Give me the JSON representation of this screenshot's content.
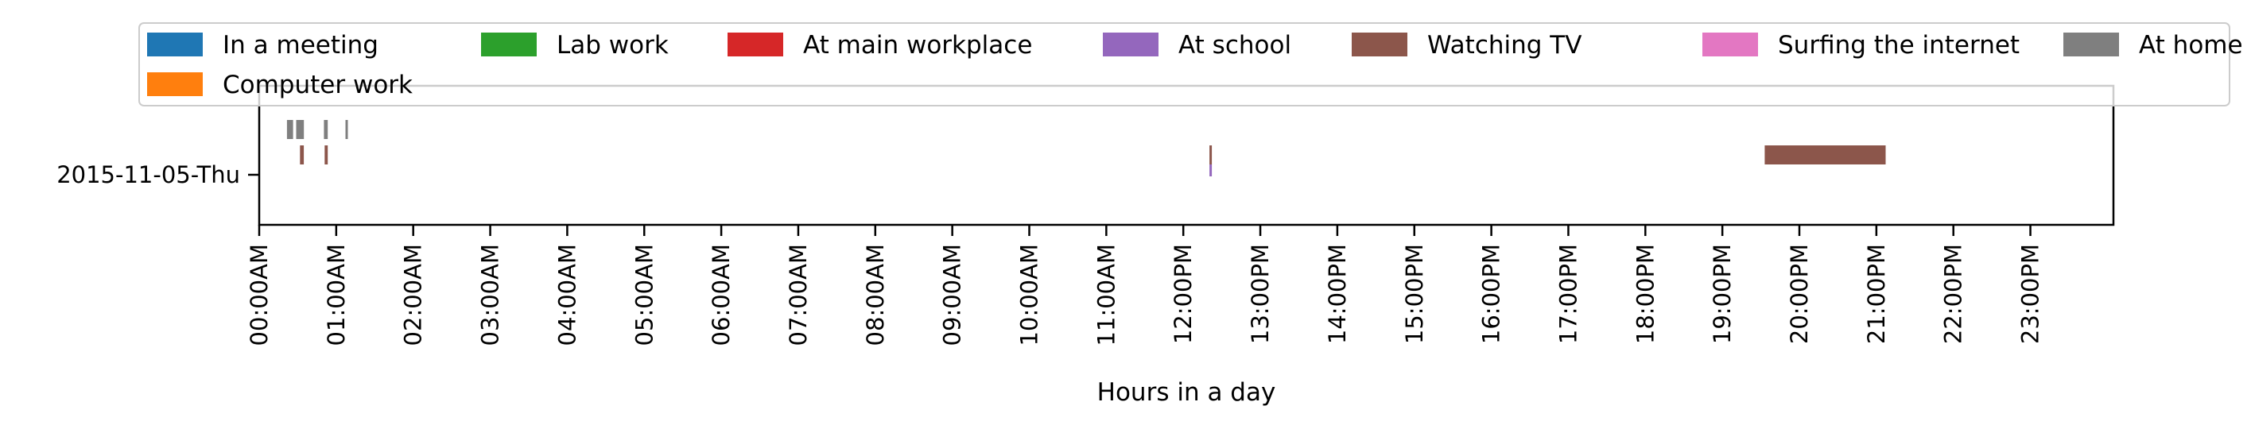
{
  "chart_data": {
    "type": "timeline",
    "xlabel": "Hours in a day",
    "xlim": [
      0,
      24
    ],
    "x_ticks": [
      {
        "v": 0,
        "label": "00:00AM"
      },
      {
        "v": 1,
        "label": "01:00AM"
      },
      {
        "v": 2,
        "label": "02:00AM"
      },
      {
        "v": 3,
        "label": "03:00AM"
      },
      {
        "v": 4,
        "label": "04:00AM"
      },
      {
        "v": 5,
        "label": "05:00AM"
      },
      {
        "v": 6,
        "label": "06:00AM"
      },
      {
        "v": 7,
        "label": "07:00AM"
      },
      {
        "v": 8,
        "label": "08:00AM"
      },
      {
        "v": 9,
        "label": "09:00AM"
      },
      {
        "v": 10,
        "label": "10:00AM"
      },
      {
        "v": 11,
        "label": "11:00AM"
      },
      {
        "v": 12,
        "label": "12:00PM"
      },
      {
        "v": 13,
        "label": "13:00PM"
      },
      {
        "v": 14,
        "label": "14:00PM"
      },
      {
        "v": 15,
        "label": "15:00PM"
      },
      {
        "v": 16,
        "label": "16:00PM"
      },
      {
        "v": 17,
        "label": "17:00PM"
      },
      {
        "v": 18,
        "label": "18:00PM"
      },
      {
        "v": 19,
        "label": "19:00PM"
      },
      {
        "v": 20,
        "label": "20:00PM"
      },
      {
        "v": 21,
        "label": "21:00PM"
      },
      {
        "v": 22,
        "label": "22:00PM"
      },
      {
        "v": 23,
        "label": "23:00PM"
      }
    ],
    "y_categories": [
      "2015-11-05-Thu"
    ],
    "legend": {
      "placement": "top",
      "entries": [
        {
          "name": "In a meeting",
          "color": "#1f77b4"
        },
        {
          "name": "Lab work",
          "color": "#2ca02c"
        },
        {
          "name": "At main workplace",
          "color": "#d62728"
        },
        {
          "name": "At school",
          "color": "#9467bd"
        },
        {
          "name": "Watching TV",
          "color": "#8c564b"
        },
        {
          "name": "Surfing the internet",
          "color": "#e377c2"
        },
        {
          "name": "At home",
          "color": "#7f7f7f"
        },
        {
          "name": "Computer work",
          "color": "#ff7f0e"
        }
      ]
    },
    "series": [
      {
        "name": "At home",
        "color": "#7f7f7f",
        "lane": "upper",
        "intervals": [
          [
            0.36,
            0.44
          ],
          [
            0.48,
            0.58
          ],
          [
            0.84,
            0.89
          ],
          [
            1.12,
            1.15
          ]
        ]
      },
      {
        "name": "Watching TV",
        "color": "#8c564b",
        "lane": "lower",
        "intervals": [
          [
            0.53,
            0.58
          ],
          [
            0.85,
            0.89
          ],
          [
            12.34,
            12.37
          ],
          [
            19.55,
            21.12
          ]
        ]
      },
      {
        "name": "At school",
        "color": "#9467bd",
        "lane": "lower-bottom",
        "intervals": [
          [
            12.34,
            12.37
          ]
        ]
      }
    ]
  }
}
